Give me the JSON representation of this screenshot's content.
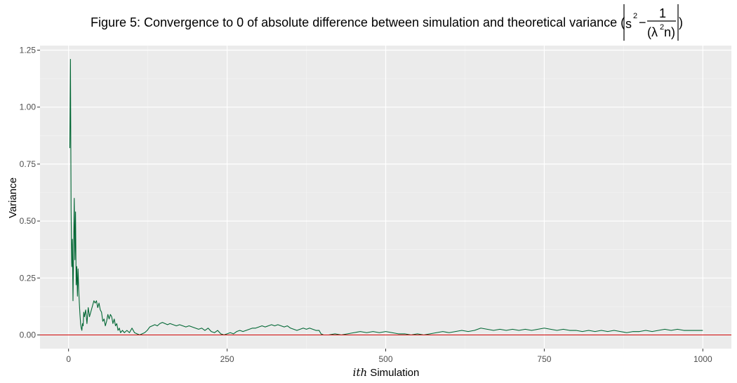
{
  "chart_data": {
    "type": "line",
    "title": {
      "prefix": "Figure 5: Convergence to 0 of absolute difference between simulation and theoretical variance (",
      "s": "s",
      "exp": "2",
      "minus": "−",
      "num": "1",
      "den_open": "(λ",
      "den_exp": "2",
      "den_close": "n)",
      "suffix": ")"
    },
    "xlabel_italic": "ith",
    "xlabel_rest": " Simulation",
    "ylabel": "Variance",
    "xlim": [
      -45,
      1045
    ],
    "ylim": [
      -0.06,
      1.27
    ],
    "xticks": [
      0,
      250,
      500,
      750,
      1000
    ],
    "xtick_labels": [
      "0",
      "250",
      "500",
      "750",
      "1000"
    ],
    "yticks": [
      0,
      0.25,
      0.5,
      0.75,
      1.0,
      1.25
    ],
    "ytick_labels": [
      "0.00",
      "0.25",
      "0.50",
      "0.75",
      "1.00",
      "1.25"
    ],
    "grid": true,
    "panel_color": "#ebebeb",
    "line_color": "#006633",
    "hline": {
      "y": 0,
      "color": "#cc0000"
    },
    "series": [
      {
        "points": [
          [
            2,
            0.82
          ],
          [
            3,
            1.21
          ],
          [
            4,
            0.55
          ],
          [
            5,
            0.3
          ],
          [
            6,
            0.42
          ],
          [
            7,
            0.15
          ],
          [
            8,
            0.38
          ],
          [
            9,
            0.6
          ],
          [
            10,
            0.33
          ],
          [
            11,
            0.54
          ],
          [
            12,
            0.22
          ],
          [
            13,
            0.3
          ],
          [
            14,
            0.17
          ],
          [
            15,
            0.29
          ],
          [
            16,
            0.2
          ],
          [
            17,
            0.14
          ],
          [
            18,
            0.09
          ],
          [
            19,
            0.05
          ],
          [
            20,
            0.03
          ],
          [
            21,
            0.02
          ],
          [
            22,
            0.05
          ],
          [
            23,
            0.04
          ],
          [
            24,
            0.1
          ],
          [
            25,
            0.08
          ],
          [
            27,
            0.11
          ],
          [
            29,
            0.05
          ],
          [
            31,
            0.12
          ],
          [
            33,
            0.08
          ],
          [
            35,
            0.1
          ],
          [
            38,
            0.13
          ],
          [
            40,
            0.15
          ],
          [
            42,
            0.14
          ],
          [
            44,
            0.15
          ],
          [
            46,
            0.12
          ],
          [
            48,
            0.14
          ],
          [
            50,
            0.11
          ],
          [
            52,
            0.1
          ],
          [
            54,
            0.06
          ],
          [
            56,
            0.07
          ],
          [
            58,
            0.04
          ],
          [
            60,
            0.06
          ],
          [
            62,
            0.09
          ],
          [
            64,
            0.07
          ],
          [
            66,
            0.09
          ],
          [
            68,
            0.08
          ],
          [
            70,
            0.05
          ],
          [
            72,
            0.07
          ],
          [
            74,
            0.04
          ],
          [
            76,
            0.05
          ],
          [
            78,
            0.02
          ],
          [
            80,
            0.03
          ],
          [
            82,
            0.01
          ],
          [
            85,
            0.02
          ],
          [
            88,
            0.01
          ],
          [
            92,
            0.02
          ],
          [
            96,
            0.01
          ],
          [
            100,
            0.03
          ],
          [
            104,
            0.01
          ],
          [
            108,
            0.005
          ],
          [
            112,
            0.0
          ],
          [
            116,
            0.005
          ],
          [
            120,
            0.01
          ],
          [
            124,
            0.02
          ],
          [
            128,
            0.035
          ],
          [
            132,
            0.04
          ],
          [
            136,
            0.045
          ],
          [
            140,
            0.04
          ],
          [
            144,
            0.05
          ],
          [
            148,
            0.055
          ],
          [
            152,
            0.05
          ],
          [
            156,
            0.045
          ],
          [
            160,
            0.05
          ],
          [
            165,
            0.045
          ],
          [
            170,
            0.04
          ],
          [
            175,
            0.045
          ],
          [
            180,
            0.04
          ],
          [
            185,
            0.035
          ],
          [
            190,
            0.04
          ],
          [
            195,
            0.035
          ],
          [
            200,
            0.03
          ],
          [
            205,
            0.025
          ],
          [
            210,
            0.03
          ],
          [
            215,
            0.02
          ],
          [
            220,
            0.03
          ],
          [
            225,
            0.015
          ],
          [
            230,
            0.01
          ],
          [
            235,
            0.02
          ],
          [
            240,
            0.005
          ],
          [
            245,
            0.0
          ],
          [
            250,
            0.005
          ],
          [
            255,
            0.01
          ],
          [
            260,
            0.005
          ],
          [
            265,
            0.015
          ],
          [
            270,
            0.02
          ],
          [
            275,
            0.015
          ],
          [
            280,
            0.02
          ],
          [
            285,
            0.025
          ],
          [
            290,
            0.03
          ],
          [
            295,
            0.03
          ],
          [
            300,
            0.035
          ],
          [
            305,
            0.04
          ],
          [
            310,
            0.035
          ],
          [
            315,
            0.04
          ],
          [
            320,
            0.045
          ],
          [
            325,
            0.04
          ],
          [
            330,
            0.045
          ],
          [
            335,
            0.04
          ],
          [
            340,
            0.035
          ],
          [
            345,
            0.04
          ],
          [
            350,
            0.03
          ],
          [
            355,
            0.025
          ],
          [
            360,
            0.02
          ],
          [
            365,
            0.025
          ],
          [
            370,
            0.03
          ],
          [
            375,
            0.025
          ],
          [
            380,
            0.03
          ],
          [
            385,
            0.025
          ],
          [
            390,
            0.02
          ],
          [
            395,
            0.02
          ],
          [
            398,
            0.005
          ],
          [
            402,
            0.0
          ],
          [
            410,
            0.0
          ],
          [
            420,
            0.005
          ],
          [
            430,
            0.0
          ],
          [
            440,
            0.005
          ],
          [
            450,
            0.01
          ],
          [
            460,
            0.015
          ],
          [
            470,
            0.01
          ],
          [
            480,
            0.015
          ],
          [
            490,
            0.01
          ],
          [
            500,
            0.015
          ],
          [
            510,
            0.01
          ],
          [
            520,
            0.005
          ],
          [
            530,
            0.005
          ],
          [
            540,
            0.0
          ],
          [
            550,
            0.005
          ],
          [
            560,
            0.0
          ],
          [
            570,
            0.005
          ],
          [
            580,
            0.01
          ],
          [
            590,
            0.015
          ],
          [
            600,
            0.01
          ],
          [
            610,
            0.015
          ],
          [
            620,
            0.02
          ],
          [
            630,
            0.015
          ],
          [
            640,
            0.02
          ],
          [
            650,
            0.03
          ],
          [
            660,
            0.025
          ],
          [
            670,
            0.02
          ],
          [
            680,
            0.025
          ],
          [
            690,
            0.02
          ],
          [
            700,
            0.025
          ],
          [
            710,
            0.02
          ],
          [
            720,
            0.025
          ],
          [
            730,
            0.02
          ],
          [
            740,
            0.025
          ],
          [
            750,
            0.03
          ],
          [
            760,
            0.025
          ],
          [
            770,
            0.02
          ],
          [
            780,
            0.025
          ],
          [
            790,
            0.02
          ],
          [
            800,
            0.02
          ],
          [
            810,
            0.015
          ],
          [
            820,
            0.02
          ],
          [
            830,
            0.015
          ],
          [
            840,
            0.02
          ],
          [
            850,
            0.015
          ],
          [
            860,
            0.02
          ],
          [
            870,
            0.015
          ],
          [
            880,
            0.01
          ],
          [
            890,
            0.015
          ],
          [
            900,
            0.015
          ],
          [
            910,
            0.02
          ],
          [
            920,
            0.015
          ],
          [
            930,
            0.02
          ],
          [
            940,
            0.025
          ],
          [
            950,
            0.02
          ],
          [
            960,
            0.025
          ],
          [
            970,
            0.02
          ],
          [
            980,
            0.02
          ],
          [
            990,
            0.02
          ],
          [
            1000,
            0.02
          ]
        ]
      }
    ]
  }
}
